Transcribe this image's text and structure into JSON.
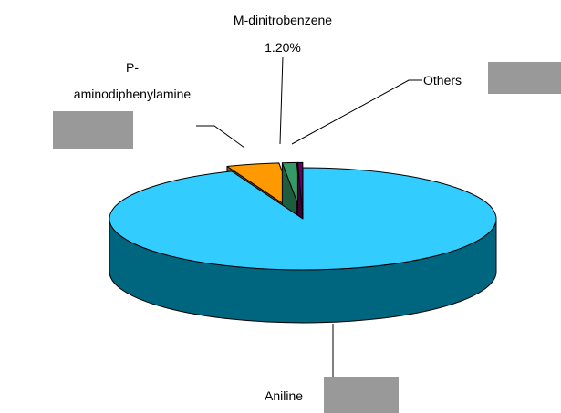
{
  "chart_data": {
    "type": "pie3d",
    "categories": [
      "Aniline",
      "P-aminodiphenylamine",
      "M-dinitrobenzene",
      "Others"
    ],
    "values": [
      94,
      4.4,
      1.2,
      0.4
    ],
    "value_labels": [
      null,
      null,
      "1.20%",
      null
    ],
    "colors": [
      "#33ccff",
      "#ff9900",
      "#339966",
      "#660066"
    ],
    "side_colors": [
      "#006680",
      "#8b5a1a",
      "#1f5c3d",
      "#3d003d"
    ]
  }
}
